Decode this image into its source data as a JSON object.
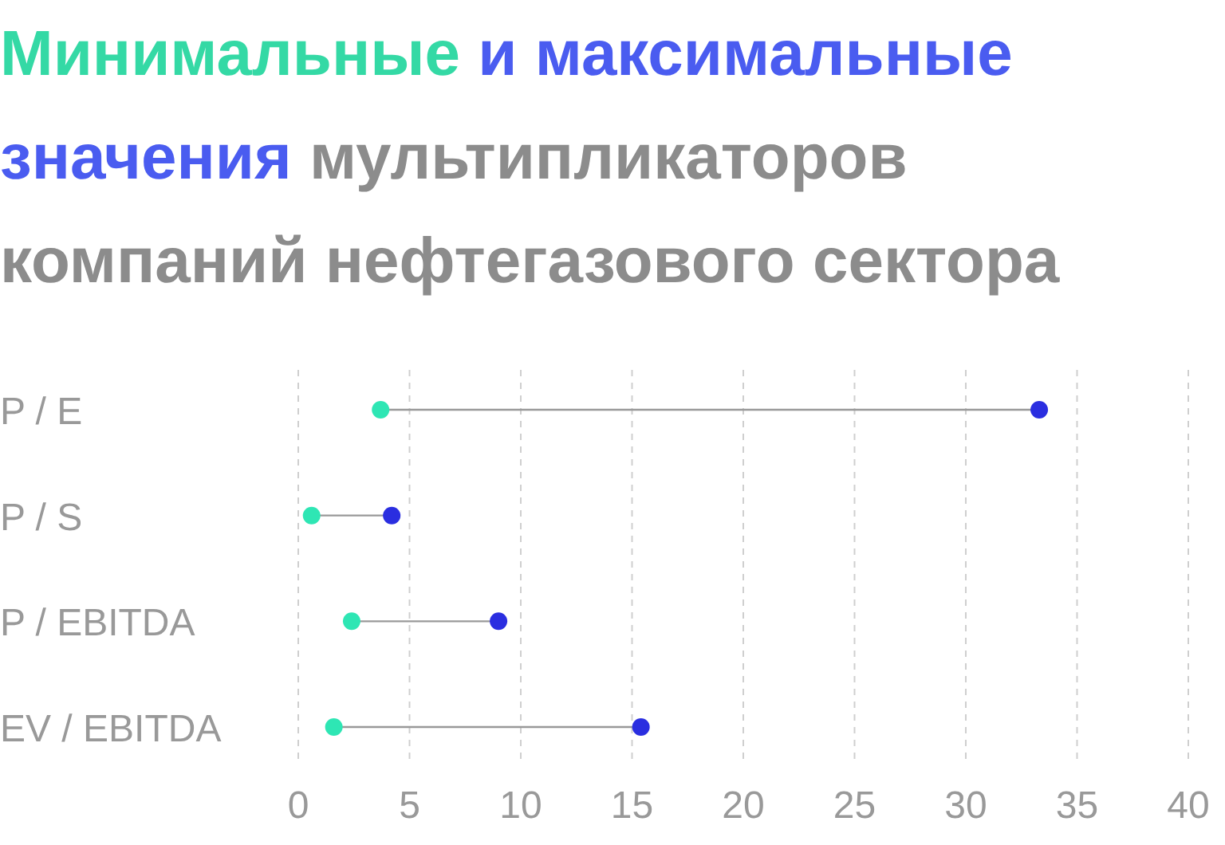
{
  "chart_data": {
    "type": "scatter",
    "orientation": "horizontal",
    "title": "мультипликаторов компаний нефтегазового сектора",
    "legend": "top",
    "categories": [
      "P / E",
      "P / S",
      "P / EBITDA",
      "EV / EBITDA"
    ],
    "series": [
      {
        "name": "Минимальные",
        "color": "#2ee6b4",
        "values": [
          3.7,
          0.6,
          2.4,
          1.6
        ]
      },
      {
        "name": "и максимальные значения",
        "color": "#2a2ee0",
        "values": [
          33.3,
          4.2,
          9.0,
          15.4
        ]
      }
    ],
    "xlim": [
      0,
      40
    ],
    "xticks": [
      0,
      5,
      10,
      15,
      20,
      25,
      30,
      35,
      40
    ],
    "grid": "x",
    "marker": "circle"
  }
}
